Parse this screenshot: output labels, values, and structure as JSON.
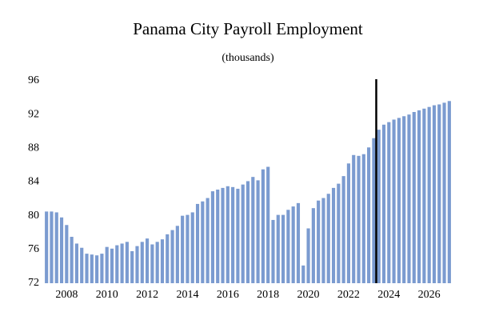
{
  "chart_data": {
    "type": "bar",
    "title": "Panama City Payroll Employment",
    "subtitle": "(thousands)",
    "categories": [
      null,
      null,
      null,
      null,
      "2008",
      null,
      null,
      null,
      null,
      null,
      null,
      null,
      "2010",
      null,
      null,
      null,
      null,
      null,
      null,
      null,
      "2012",
      null,
      null,
      null,
      null,
      null,
      null,
      null,
      "2014",
      null,
      null,
      null,
      null,
      null,
      null,
      null,
      "2016",
      null,
      null,
      null,
      null,
      null,
      null,
      null,
      "2018",
      null,
      null,
      null,
      null,
      null,
      null,
      null,
      "2020",
      null,
      null,
      null,
      null,
      null,
      null,
      null,
      "2022",
      null,
      null,
      null,
      null,
      null,
      null,
      null,
      "2024",
      null,
      null,
      null,
      null,
      null,
      null,
      null,
      "2026",
      null,
      null,
      null,
      null
    ],
    "values": [
      80.5,
      80.5,
      80.4,
      79.8,
      78.9,
      77.5,
      76.7,
      76.2,
      75.5,
      75.4,
      75.3,
      75.5,
      76.3,
      76.1,
      76.5,
      76.7,
      76.9,
      75.8,
      76.4,
      76.9,
      77.3,
      76.6,
      76.9,
      77.2,
      77.8,
      78.3,
      78.8,
      80.0,
      80.1,
      80.4,
      81.4,
      81.7,
      82.1,
      82.9,
      83.1,
      83.3,
      83.5,
      83.4,
      83.2,
      83.7,
      84.1,
      84.6,
      84.2,
      85.5,
      85.8,
      79.5,
      80.1,
      80.1,
      80.7,
      81.1,
      81.5,
      74.1,
      78.5,
      80.9,
      81.8,
      82.1,
      82.6,
      83.3,
      83.8,
      84.7,
      86.2,
      87.2,
      87.1,
      87.3,
      88.1,
      89.2,
      90.2,
      90.8,
      91.1,
      91.4,
      91.6,
      91.8,
      92.0,
      92.3,
      92.5,
      92.7,
      92.9,
      93.1,
      93.2,
      93.4,
      93.6
    ],
    "color": "#7b9bd0",
    "ylim": [
      72,
      96
    ],
    "yticks": [
      72,
      76,
      80,
      84,
      88,
      92,
      96
    ],
    "grid": false
  }
}
